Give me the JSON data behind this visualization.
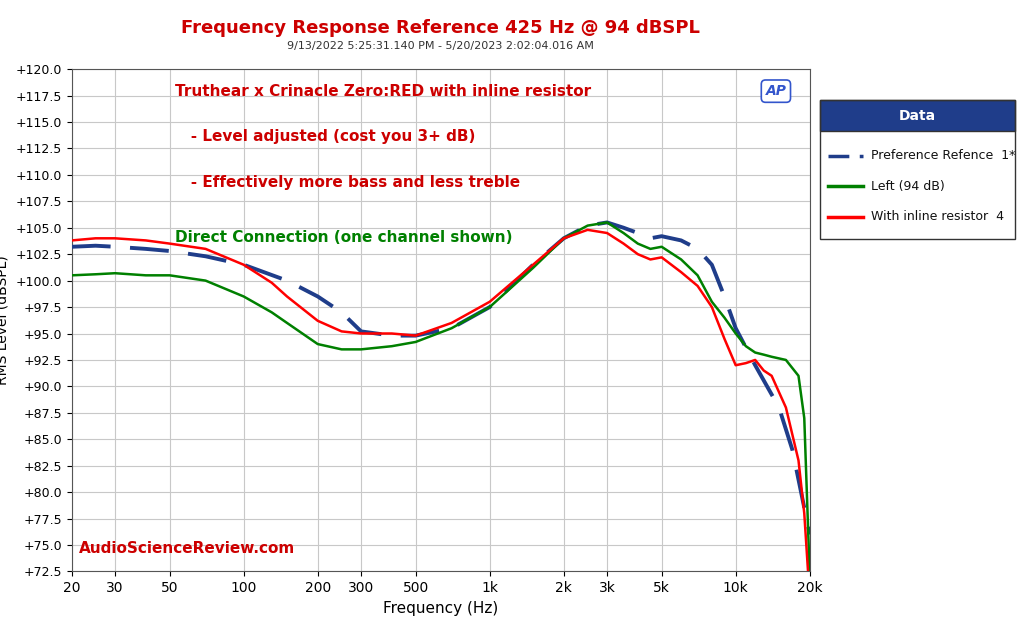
{
  "title": "Frequency Response Reference 425 Hz @ 94 dBSPL",
  "subtitle": "9/13/2022 5:25:31.140 PM - 5/20/2023 2:02:04.016 AM",
  "xlabel": "Frequency (Hz)",
  "ylabel": "RMS Level (dBSPL)",
  "annotation_red_line1": "Truthear x Crinacle Zero:RED with inline resistor",
  "annotation_red_line2": "   - Level adjusted (cost you 3+ dB)",
  "annotation_red_line3": "   - Effectively more bass and less treble",
  "annotation_green": "Direct Connection (one channel shown)",
  "watermark": "AudioScienceReview.com",
  "ap_label": "AP",
  "legend_title": "Data",
  "legend_entries": [
    "Preference Refence  1*",
    "Left (94 dB)",
    "With inline resistor  4"
  ],
  "legend_colors": [
    "#1f3d8a",
    "#008000",
    "#ff0000"
  ],
  "ylim": [
    72.5,
    120.0
  ],
  "yticks": [
    72.5,
    75.0,
    77.5,
    80.0,
    82.5,
    85.0,
    87.5,
    90.0,
    92.5,
    95.0,
    97.5,
    100.0,
    102.5,
    105.0,
    107.5,
    110.0,
    112.5,
    115.0,
    117.5,
    120.0
  ],
  "xticks_log": [
    20,
    30,
    50,
    100,
    200,
    300,
    500,
    1000,
    2000,
    3000,
    5000,
    10000,
    20000
  ],
  "xtick_labels": [
    "20",
    "30",
    "50",
    "100",
    "200",
    "300",
    "500",
    "1k",
    "2k",
    "3k",
    "5k",
    "10k",
    "20k"
  ],
  "bg_color": "#ffffff",
  "grid_color": "#c8c8c8",
  "title_color": "#cc0000",
  "freq_blue": [
    20,
    25,
    30,
    40,
    50,
    70,
    100,
    150,
    200,
    250,
    300,
    400,
    500,
    700,
    1000,
    1500,
    2000,
    2500,
    3000,
    3500,
    4000,
    4500,
    5000,
    6000,
    7000,
    8000,
    9000,
    10000,
    12000,
    15000,
    17000,
    20000
  ],
  "db_blue": [
    103.2,
    103.3,
    103.2,
    103.0,
    102.8,
    102.3,
    101.5,
    100.0,
    98.5,
    97.0,
    95.2,
    94.8,
    94.8,
    95.5,
    97.5,
    101.5,
    104.0,
    105.2,
    105.5,
    105.0,
    104.5,
    104.0,
    104.2,
    103.8,
    103.0,
    101.5,
    98.5,
    95.5,
    92.0,
    88.0,
    84.0,
    76.0
  ],
  "freq_green": [
    20,
    25,
    30,
    40,
    50,
    70,
    100,
    130,
    150,
    200,
    250,
    300,
    400,
    500,
    700,
    1000,
    1500,
    2000,
    2500,
    3000,
    3500,
    4000,
    4500,
    5000,
    6000,
    7000,
    8000,
    9000,
    10000,
    11000,
    12000,
    13000,
    14000,
    16000,
    18000,
    19000,
    20000
  ],
  "db_green": [
    100.5,
    100.6,
    100.7,
    100.5,
    100.5,
    100.0,
    98.5,
    97.0,
    96.0,
    94.0,
    93.5,
    93.5,
    93.8,
    94.2,
    95.5,
    97.5,
    101.2,
    104.0,
    105.2,
    105.5,
    104.5,
    103.5,
    103.0,
    103.2,
    102.0,
    100.5,
    98.0,
    96.5,
    95.0,
    93.8,
    93.2,
    93.0,
    92.8,
    92.5,
    91.0,
    87.0,
    72.0
  ],
  "freq_red": [
    20,
    25,
    30,
    40,
    50,
    70,
    100,
    130,
    150,
    200,
    250,
    300,
    400,
    500,
    700,
    1000,
    1500,
    2000,
    2500,
    3000,
    3500,
    4000,
    4500,
    5000,
    6000,
    7000,
    8000,
    9000,
    10000,
    11000,
    12000,
    13000,
    14000,
    16000,
    18000,
    19000,
    20000
  ],
  "db_red": [
    103.8,
    104.0,
    104.0,
    103.8,
    103.5,
    103.0,
    101.5,
    99.8,
    98.5,
    96.2,
    95.2,
    95.0,
    95.0,
    94.8,
    96.0,
    98.0,
    101.5,
    104.0,
    104.8,
    104.5,
    103.5,
    102.5,
    102.0,
    102.2,
    100.8,
    99.5,
    97.5,
    94.5,
    92.0,
    92.2,
    92.5,
    91.5,
    91.0,
    88.0,
    83.0,
    78.0,
    70.0
  ]
}
